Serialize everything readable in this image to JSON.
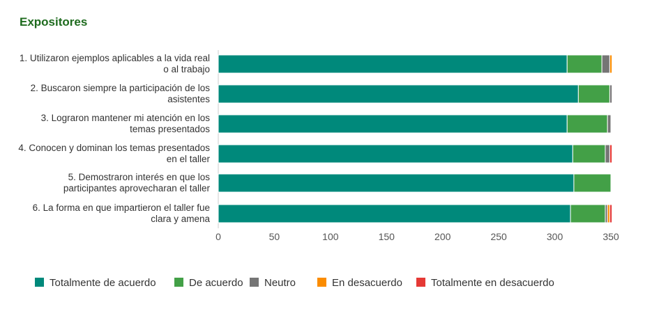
{
  "chart_data": {
    "type": "bar",
    "orientation": "horizontal",
    "stacked": true,
    "title": "Expositores",
    "categories": [
      [
        "1. Utilizaron ejemplos aplicables a la vida real",
        "o al trabajo"
      ],
      [
        "2. Buscaron siempre la participación de los",
        "asistentes"
      ],
      [
        "3. Lograron mantener mi atención en los",
        "temas presentados"
      ],
      [
        "4. Conocen y dominan los temas presentados",
        "en el taller"
      ],
      [
        "5. Demostraron interés en que los",
        "participantes aprovecharan el taller"
      ],
      [
        "6. La forma en que impartieron el taller fue",
        "clara y amena"
      ]
    ],
    "series": [
      {
        "name": "Totalmente de acuerdo",
        "color": "#00897b",
        "values": [
          311,
          321,
          311,
          316,
          317,
          314
        ]
      },
      {
        "name": "De acuerdo",
        "color": "#43a047",
        "values": [
          31,
          28,
          36,
          29,
          33,
          31
        ]
      },
      {
        "name": "Neutro",
        "color": "#757575",
        "values": [
          7,
          2,
          3,
          4,
          0,
          2
        ]
      },
      {
        "name": "En desacuerdo",
        "color": "#fb8c00",
        "values": [
          2,
          0,
          0,
          0,
          0,
          2
        ]
      },
      {
        "name": "Totalmente en desacuerdo",
        "color": "#e53935",
        "values": [
          0,
          0,
          0,
          2,
          0,
          2
        ]
      }
    ],
    "xlim": [
      0,
      350
    ],
    "xticks": [
      0,
      50,
      100,
      150,
      200,
      250,
      300,
      350
    ],
    "grid": false,
    "legend_position": "bottom"
  }
}
